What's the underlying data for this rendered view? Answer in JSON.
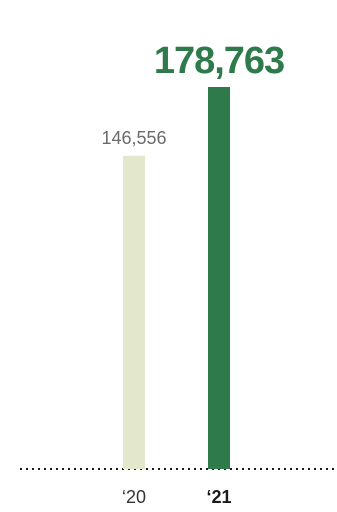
{
  "chart_data": {
    "type": "bar",
    "categories": [
      "‘20",
      "‘21"
    ],
    "values": [
      146556,
      178763
    ],
    "value_labels": [
      "146,556",
      "178,763"
    ],
    "colors": [
      "#e3e8cc",
      "#2f7a4a"
    ],
    "ylim": [
      0,
      178763
    ],
    "baseline": "dotted",
    "grid": false
  }
}
